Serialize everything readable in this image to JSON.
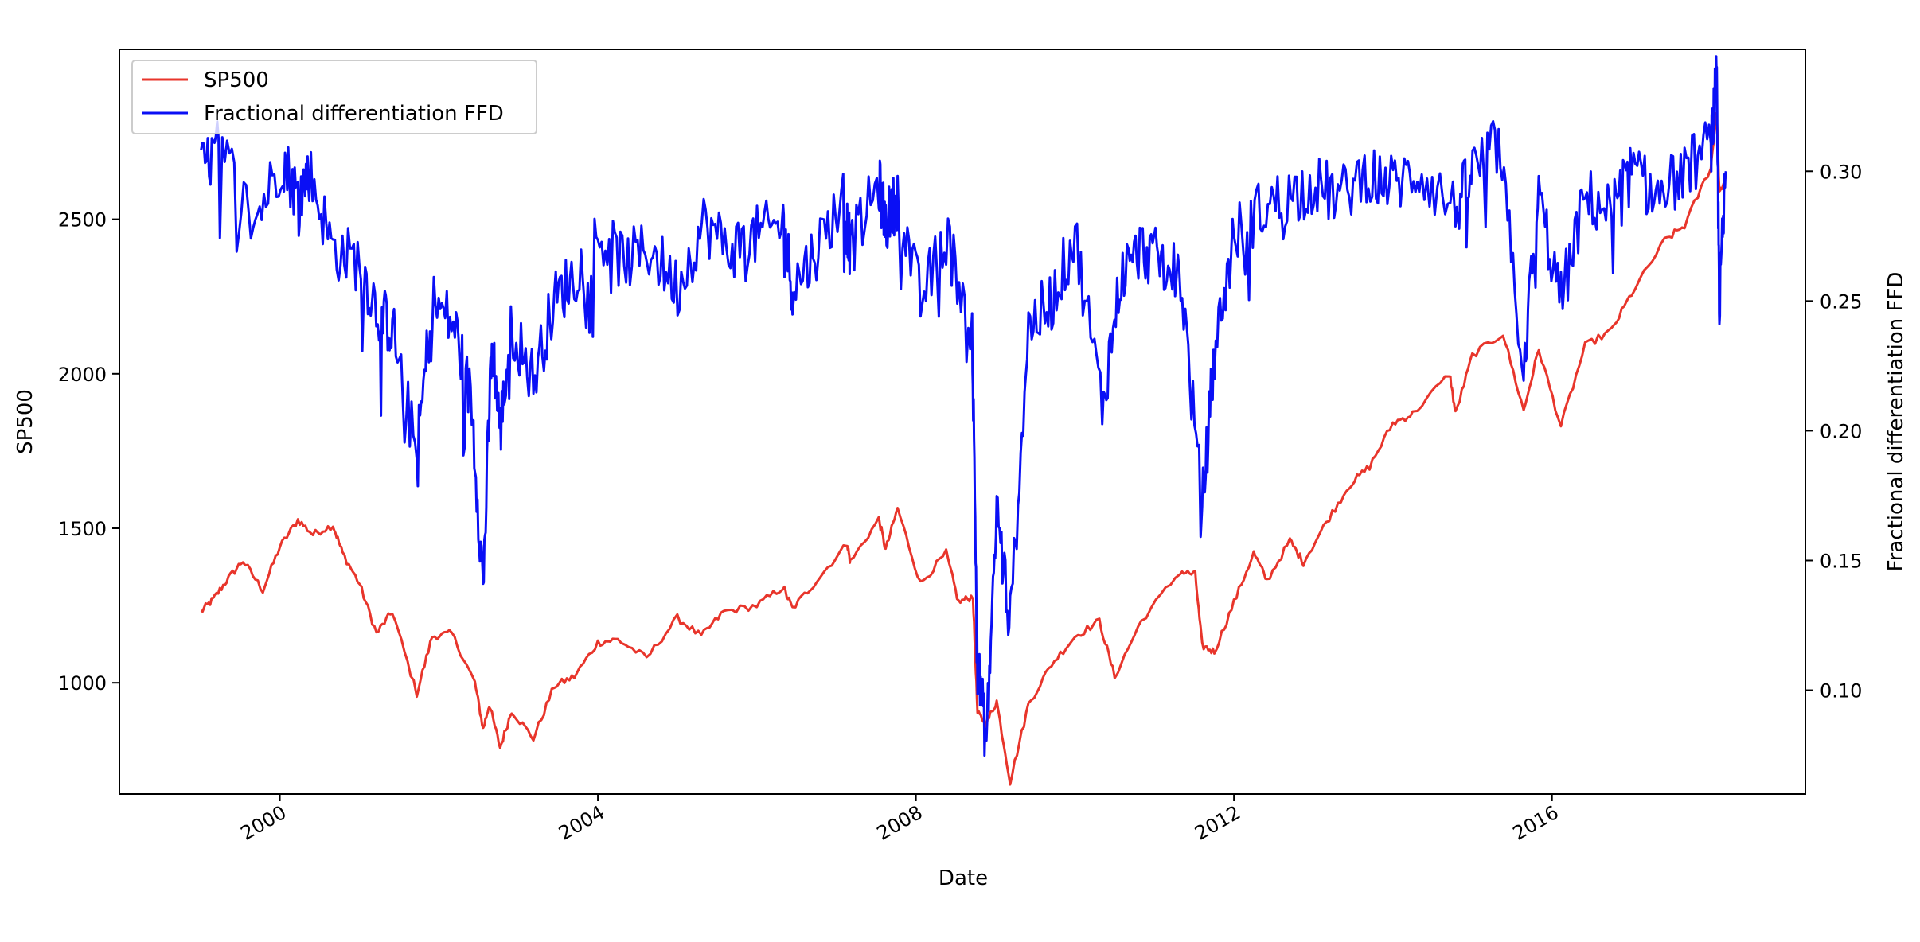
{
  "chart_data": {
    "type": "line",
    "title": "",
    "xlabel": "Date",
    "ylabel_left": "SP500",
    "ylabel_right": "Fractional differentiation FFD",
    "x_ticks": [
      "2000",
      "2004",
      "2008",
      "2012",
      "2016"
    ],
    "y_left_ticks": [
      "1000",
      "1500",
      "2000",
      "2500"
    ],
    "y_right_ticks": [
      "0.10",
      "0.15",
      "0.20",
      "0.25",
      "0.30"
    ],
    "xlim": [
      "1997-12-25",
      "2019-03-10"
    ],
    "ylim_left": [
      640,
      3050
    ],
    "ylim_right": [
      0.06,
      0.347
    ],
    "grid": false,
    "legend_position": "top-left",
    "colors": {
      "sp500": "#e8352b",
      "ffd": "#0a0ff5"
    },
    "series": [
      {
        "name": "SP500",
        "axis": "left",
        "x": [
          "1999-01-04",
          "1999-03-01",
          "1999-05-01",
          "1999-07-15",
          "1999-10-15",
          "2000-01-01",
          "2000-03-24",
          "2000-06-01",
          "2000-09-01",
          "2000-10-15",
          "2001-01-01",
          "2001-03-20",
          "2001-06-01",
          "2001-09-21",
          "2001-12-01",
          "2002-03-01",
          "2002-06-15",
          "2002-07-23",
          "2002-08-20",
          "2002-10-09",
          "2002-12-01",
          "2003-03-11",
          "2003-06-15",
          "2003-09-15",
          "2004-01-01",
          "2004-04-01",
          "2004-08-12",
          "2004-12-31",
          "2005-04-20",
          "2005-08-01",
          "2005-12-31",
          "2006-05-01",
          "2006-06-13",
          "2006-10-01",
          "2007-02-20",
          "2007-03-05",
          "2007-07-15",
          "2007-08-15",
          "2007-10-09",
          "2008-01-22",
          "2008-05-19",
          "2008-07-15",
          "2008-09-19",
          "2008-10-10",
          "2008-11-20",
          "2009-01-06",
          "2009-03-09",
          "2009-06-01",
          "2009-09-15",
          "2010-01-01",
          "2010-04-23",
          "2010-07-02",
          "2010-11-01",
          "2011-04-29",
          "2011-07-07",
          "2011-08-08",
          "2011-10-03",
          "2012-01-01",
          "2012-04-01",
          "2012-06-01",
          "2012-09-14",
          "2012-11-15",
          "2013-03-01",
          "2013-06-15",
          "2013-09-15",
          "2013-12-31",
          "2014-04-01",
          "2014-09-18",
          "2014-10-15",
          "2014-12-31",
          "2015-05-21",
          "2015-08-24",
          "2015-11-01",
          "2016-02-11",
          "2016-06-01",
          "2016-10-01",
          "2017-01-01",
          "2017-06-01",
          "2017-09-01",
          "2017-12-31",
          "2018-01-26",
          "2018-02-08",
          "2018-03-10"
        ],
        "values": [
          1230,
          1270,
          1330,
          1395,
          1300,
          1440,
          1527,
          1480,
          1510,
          1420,
          1320,
          1160,
          1230,
          965,
          1150,
          1160,
          1000,
          850,
          930,
          790,
          910,
          820,
          990,
          1020,
          1130,
          1140,
          1080,
          1210,
          1150,
          1230,
          1250,
          1310,
          1240,
          1330,
          1450,
          1390,
          1530,
          1430,
          1565,
          1320,
          1420,
          1260,
          1280,
          900,
          870,
          940,
          680,
          930,
          1060,
          1150,
          1200,
          1020,
          1200,
          1360,
          1350,
          1120,
          1100,
          1260,
          1420,
          1330,
          1460,
          1390,
          1520,
          1640,
          1700,
          1840,
          1870,
          2000,
          1870,
          2060,
          2130,
          1880,
          2080,
          1830,
          2090,
          2140,
          2260,
          2430,
          2480,
          2670,
          2850,
          2580,
          2640
        ]
      },
      {
        "name": "Fractional differentiation FFD",
        "axis": "right",
        "x": [
          "1999-01-04",
          "1999-04-01",
          "1999-09-01",
          "2000-01-15",
          "2000-03-24",
          "2000-05-15",
          "2000-09-01",
          "2001-01-01",
          "2001-04-01",
          "2001-06-01",
          "2001-09-21",
          "2001-12-01",
          "2002-03-15",
          "2002-06-01",
          "2002-07-23",
          "2002-09-01",
          "2002-10-09",
          "2002-12-01",
          "2003-03-11",
          "2003-06-15",
          "2003-09-15",
          "2004-01-01",
          "2004-05-01",
          "2004-09-01",
          "2005-01-01",
          "2005-05-01",
          "2005-09-01",
          "2006-01-01",
          "2006-05-01",
          "2006-06-13",
          "2006-10-01",
          "2007-02-01",
          "2007-03-05",
          "2007-07-15",
          "2007-08-15",
          "2007-10-09",
          "2008-01-22",
          "2008-05-19",
          "2008-09-15",
          "2008-10-10",
          "2008-11-20",
          "2009-01-06",
          "2009-03-09",
          "2009-06-01",
          "2009-09-15",
          "2010-01-01",
          "2010-05-06",
          "2010-08-01",
          "2010-11-01",
          "2011-02-01",
          "2011-05-01",
          "2011-08-08",
          "2011-10-03",
          "2012-01-01",
          "2012-05-01",
          "2012-09-01",
          "2013-01-01",
          "2013-05-01",
          "2013-09-01",
          "2014-01-01",
          "2014-05-01",
          "2014-10-15",
          "2015-01-01",
          "2015-05-01",
          "2015-08-24",
          "2015-11-01",
          "2016-02-11",
          "2016-06-01",
          "2016-10-01",
          "2017-01-01",
          "2017-05-01",
          "2017-09-01",
          "2017-12-31",
          "2018-01-26",
          "2018-02-08",
          "2018-03-10"
        ],
        "values": [
          0.3,
          0.31,
          0.28,
          0.305,
          0.29,
          0.3,
          0.27,
          0.265,
          0.245,
          0.24,
          0.19,
          0.25,
          0.24,
          0.21,
          0.14,
          0.235,
          0.2,
          0.24,
          0.22,
          0.25,
          0.26,
          0.275,
          0.265,
          0.27,
          0.255,
          0.28,
          0.27,
          0.275,
          0.28,
          0.255,
          0.27,
          0.29,
          0.27,
          0.295,
          0.28,
          0.29,
          0.25,
          0.275,
          0.24,
          0.11,
          0.08,
          0.17,
          0.125,
          0.24,
          0.25,
          0.275,
          0.21,
          0.26,
          0.27,
          0.265,
          0.26,
          0.17,
          0.23,
          0.275,
          0.285,
          0.29,
          0.295,
          0.29,
          0.3,
          0.295,
          0.3,
          0.285,
          0.3,
          0.31,
          0.225,
          0.29,
          0.25,
          0.29,
          0.285,
          0.3,
          0.29,
          0.3,
          0.31,
          0.335,
          0.25,
          0.3
        ]
      }
    ]
  }
}
